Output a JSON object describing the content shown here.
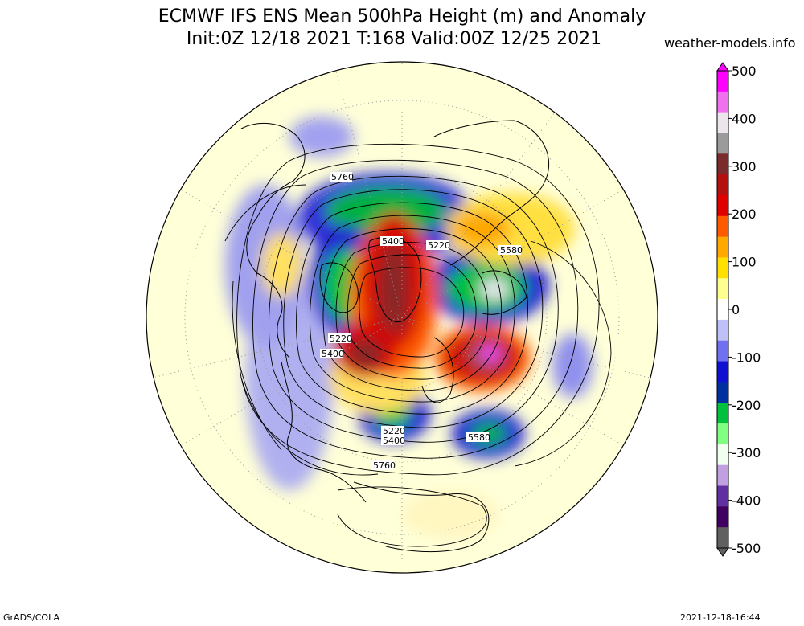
{
  "header": {
    "title_line1": "ECMWF IFS ENS Mean 500hPa Height (m) and Anomaly",
    "title_line2": "Init:0Z 12/18 2021  T:168 Valid:00Z 12/25 2021",
    "credit": "weather-models.info"
  },
  "footer": {
    "left": "GrADS/COLA",
    "right": "2021-12-18-16:44"
  },
  "map": {
    "projection": "north polar stereographic",
    "contour_labels": [
      "5760",
      "5400",
      "5220",
      "5580",
      "5220",
      "5400",
      "5220",
      "5400",
      "5580",
      "5760"
    ]
  },
  "colorbar": {
    "ticks": [
      "500",
      "400",
      "300",
      "200",
      "100",
      "0",
      "-100",
      "-200",
      "-300",
      "-400",
      "-500"
    ],
    "colors": [
      "#fe00fe",
      "#f070f0",
      "#ece6ec",
      "#9b9b9b",
      "#7a2b2b",
      "#b51010",
      "#e00000",
      "#ff5a00",
      "#ffa800",
      "#ffe000",
      "#ffff90",
      "#ffffff",
      "#c0c0f8",
      "#7070f0",
      "#1010d0",
      "#0030a0",
      "#00c040",
      "#80ff80",
      "#f0fff0",
      "#c0a0e0",
      "#6030a0",
      "#400060",
      "#606060"
    ]
  }
}
